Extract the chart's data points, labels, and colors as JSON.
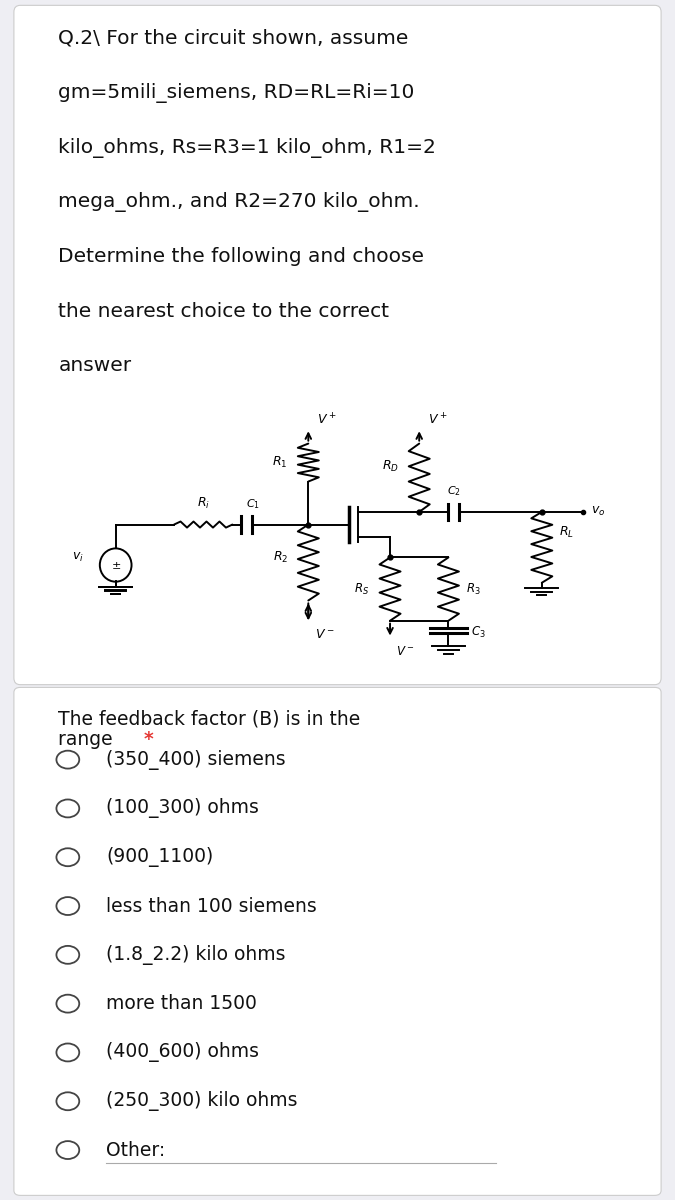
{
  "title_lines": [
    "Q.2\\ For the circuit shown, assume",
    "gm=5mili_siemens, RD=RL=Ri=10",
    "kilo_ohms, Rs=R3=1 kilo_ohm, R1=2",
    "mega_ohm., and R2=270 kilo_ohm.",
    "Determine the following and choose",
    "the nearest choice to the correct",
    "answer"
  ],
  "question_line1": "The feedback factor (B) is in the",
  "question_line2": "range",
  "options": [
    "(350_400) siemens",
    "(100_300) ohms",
    "(900_1100)",
    "less than 100 siemens",
    "(1.8_2.2) kilo ohms",
    "more than 1500",
    "(400_600) ohms",
    "(250_300) kilo ohms",
    "Other:"
  ],
  "bg_color": "#eeeef3",
  "card_color": "#ffffff",
  "text_color": "#111111",
  "asterisk_color": "#e53935",
  "radio_color": "#444444",
  "title_fontsize": 14.5,
  "option_fontsize": 13.5,
  "question_fontsize": 13.5
}
